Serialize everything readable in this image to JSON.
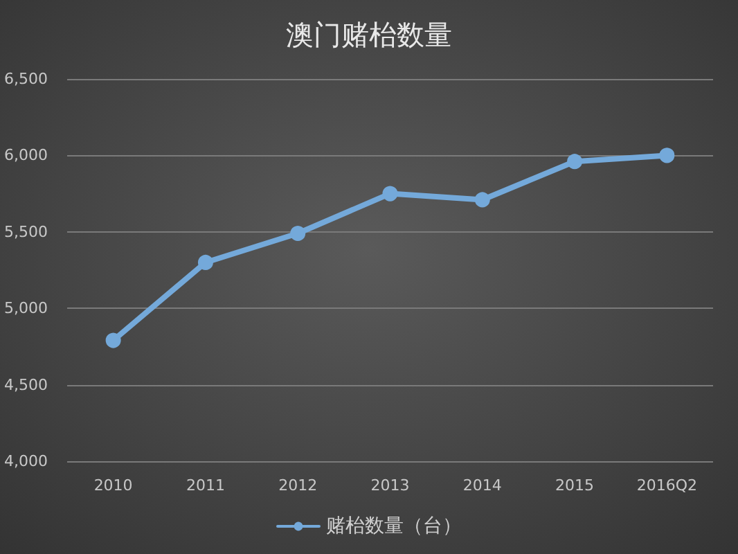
{
  "chart_data": {
    "type": "line",
    "title": "澳门赌枱数量",
    "categories": [
      "2010",
      "2011",
      "2012",
      "2013",
      "2014",
      "2015",
      "2016Q2"
    ],
    "series": [
      {
        "name": "赌枱数量（台）",
        "color": "#74a9da",
        "values": [
          4790,
          5300,
          5490,
          5750,
          5710,
          5960,
          6000
        ]
      }
    ],
    "ylim": [
      4000,
      6500
    ],
    "yticks": [
      {
        "value": 4000,
        "label": "4,000"
      },
      {
        "value": 4500,
        "label": "4,500"
      },
      {
        "value": 5000,
        "label": "5,000"
      },
      {
        "value": 5500,
        "label": "5,500"
      },
      {
        "value": 6000,
        "label": "6,000"
      },
      {
        "value": 6500,
        "label": "6,500"
      }
    ],
    "grid": "y",
    "legend": "bottom",
    "marker": "circle"
  }
}
